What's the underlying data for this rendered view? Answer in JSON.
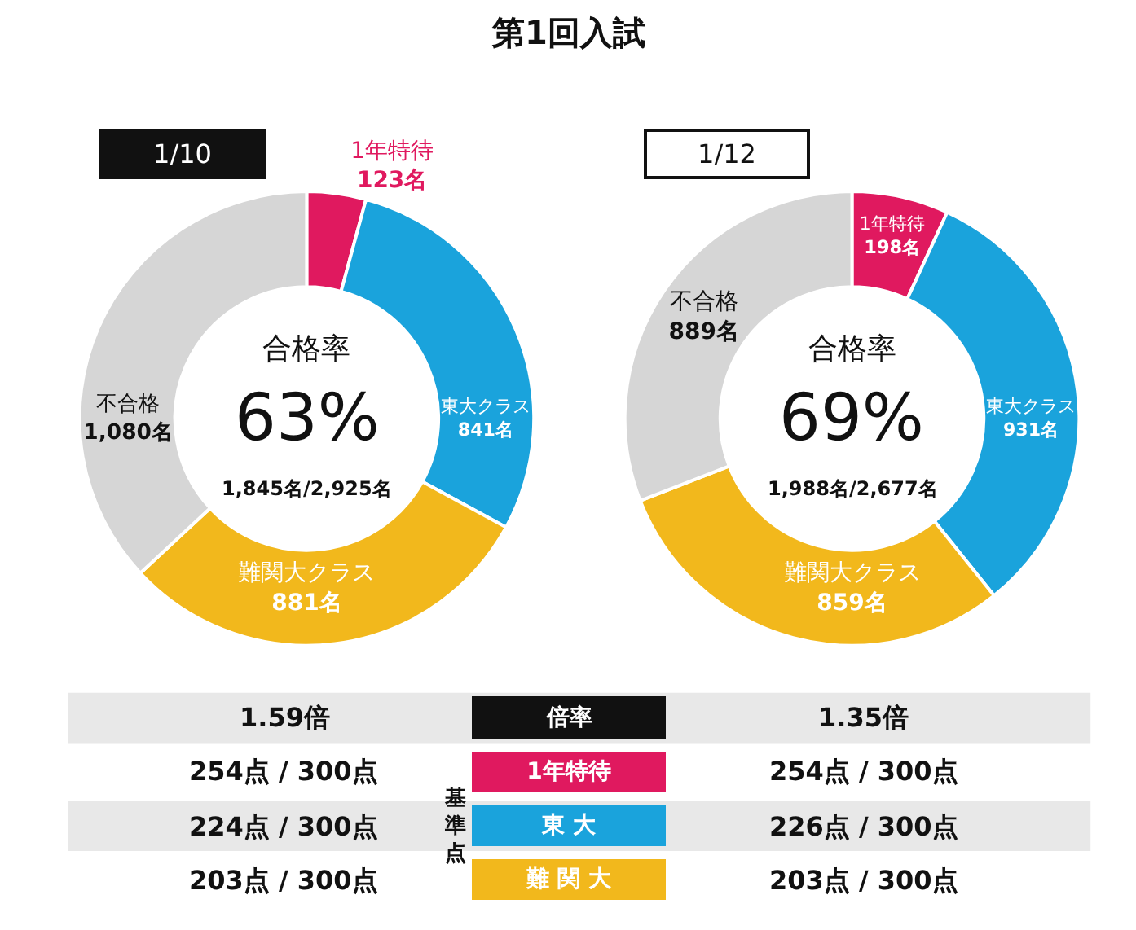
{
  "chart_data": [
    {
      "type": "donut",
      "title": "第1回入試",
      "subtitle": "1/10",
      "categories": [
        "1年特待",
        "東大クラス",
        "難関大クラス",
        "不合格"
      ],
      "values": [
        123,
        841,
        881,
        1080
      ],
      "colors": [
        "#e0195f",
        "#1aa3dc",
        "#f2b81c",
        "#d6d6d6"
      ],
      "value_labels": [
        "123名",
        "841名",
        "881名",
        "1,080名"
      ],
      "annotations": [
        "合格率",
        "63%",
        "1,845名/2,925名"
      ]
    },
    {
      "type": "donut",
      "title": "1/12",
      "categories": [
        "1年特待",
        "東大クラス",
        "難関大クラス",
        "不合格"
      ],
      "values": [
        198,
        931,
        859,
        889
      ],
      "colors": [
        "#e0195f",
        "#1aa3dc",
        "#f2b81c",
        "#d6d6d6"
      ],
      "value_labels": [
        "198名",
        "931名",
        "859名",
        "889名"
      ],
      "annotations": [
        "合格率",
        "69%",
        "1,988名/2,677名"
      ]
    },
    {
      "type": "other",
      "colors": [
        "#111111",
        "#e0195f",
        "#1aa3dc",
        "#f2b81c"
      ],
      "annotations": [
        "1.59倍",
        "倍率",
        "1.35倍",
        "254点 / 300点",
        "1年特待",
        "254点 / 300点",
        "224点 / 300点",
        "東 大",
        "226点 / 300点",
        "203点 / 300点",
        "難 関 大",
        "203点 / 300点",
        "基準点"
      ]
    }
  ]
}
